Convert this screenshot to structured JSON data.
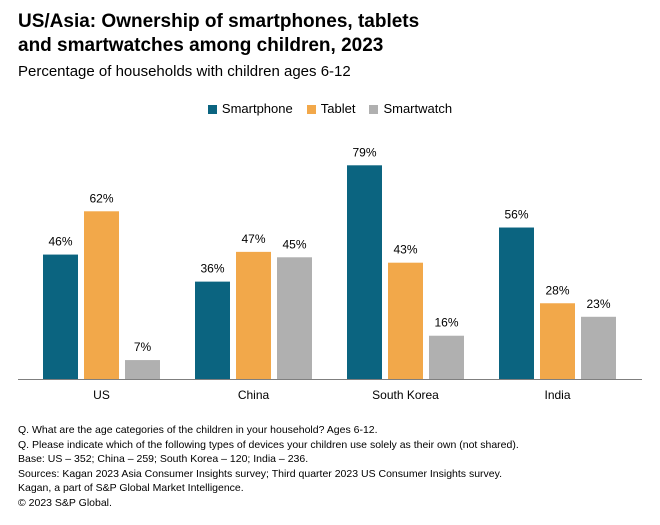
{
  "header": {
    "title_lines": [
      "US/Asia: Ownership of smartphones, tablets",
      "and smartwatches among children, 2023"
    ],
    "subtitle": "Percentage of households with children ages 6-12"
  },
  "colors": {
    "smartphone": "#0b6480",
    "tablet": "#f2a84a",
    "smartwatch": "#b0b0b0",
    "axis": "#7f7f7f"
  },
  "chart_data": {
    "type": "bar",
    "title": "US/Asia: Ownership of smartphones, tablets and smartwatches among children, 2023",
    "subtitle": "Percentage of households with children ages 6-12",
    "xlabel": "",
    "ylabel": "",
    "ylim": [
      0,
      90
    ],
    "grid": false,
    "legend_position": "top-center",
    "categories": [
      "US",
      "China",
      "South Korea",
      "India"
    ],
    "series": [
      {
        "name": "Smartphone",
        "color_key": "smartphone",
        "values": [
          46,
          36,
          79,
          56
        ]
      },
      {
        "name": "Tablet",
        "color_key": "tablet",
        "values": [
          62,
          47,
          43,
          28
        ]
      },
      {
        "name": "Smartwatch",
        "color_key": "smartwatch",
        "values": [
          7,
          45,
          16,
          23
        ]
      }
    ],
    "value_suffix": "%"
  },
  "notes": [
    "Q. What are the age categories of the children in your household? Ages 6-12.",
    "Q. Please indicate which of the following types of devices your children use solely as their own (not shared).",
    "Base: US – 352; China – 259; South Korea – 120; India – 236.",
    "Sources: Kagan 2023 Asia Consumer Insights survey; Third quarter 2023 US Consumer Insights survey.",
    "Kagan, a part of S&P Global Market Intelligence.",
    "© 2023 S&P Global."
  ]
}
